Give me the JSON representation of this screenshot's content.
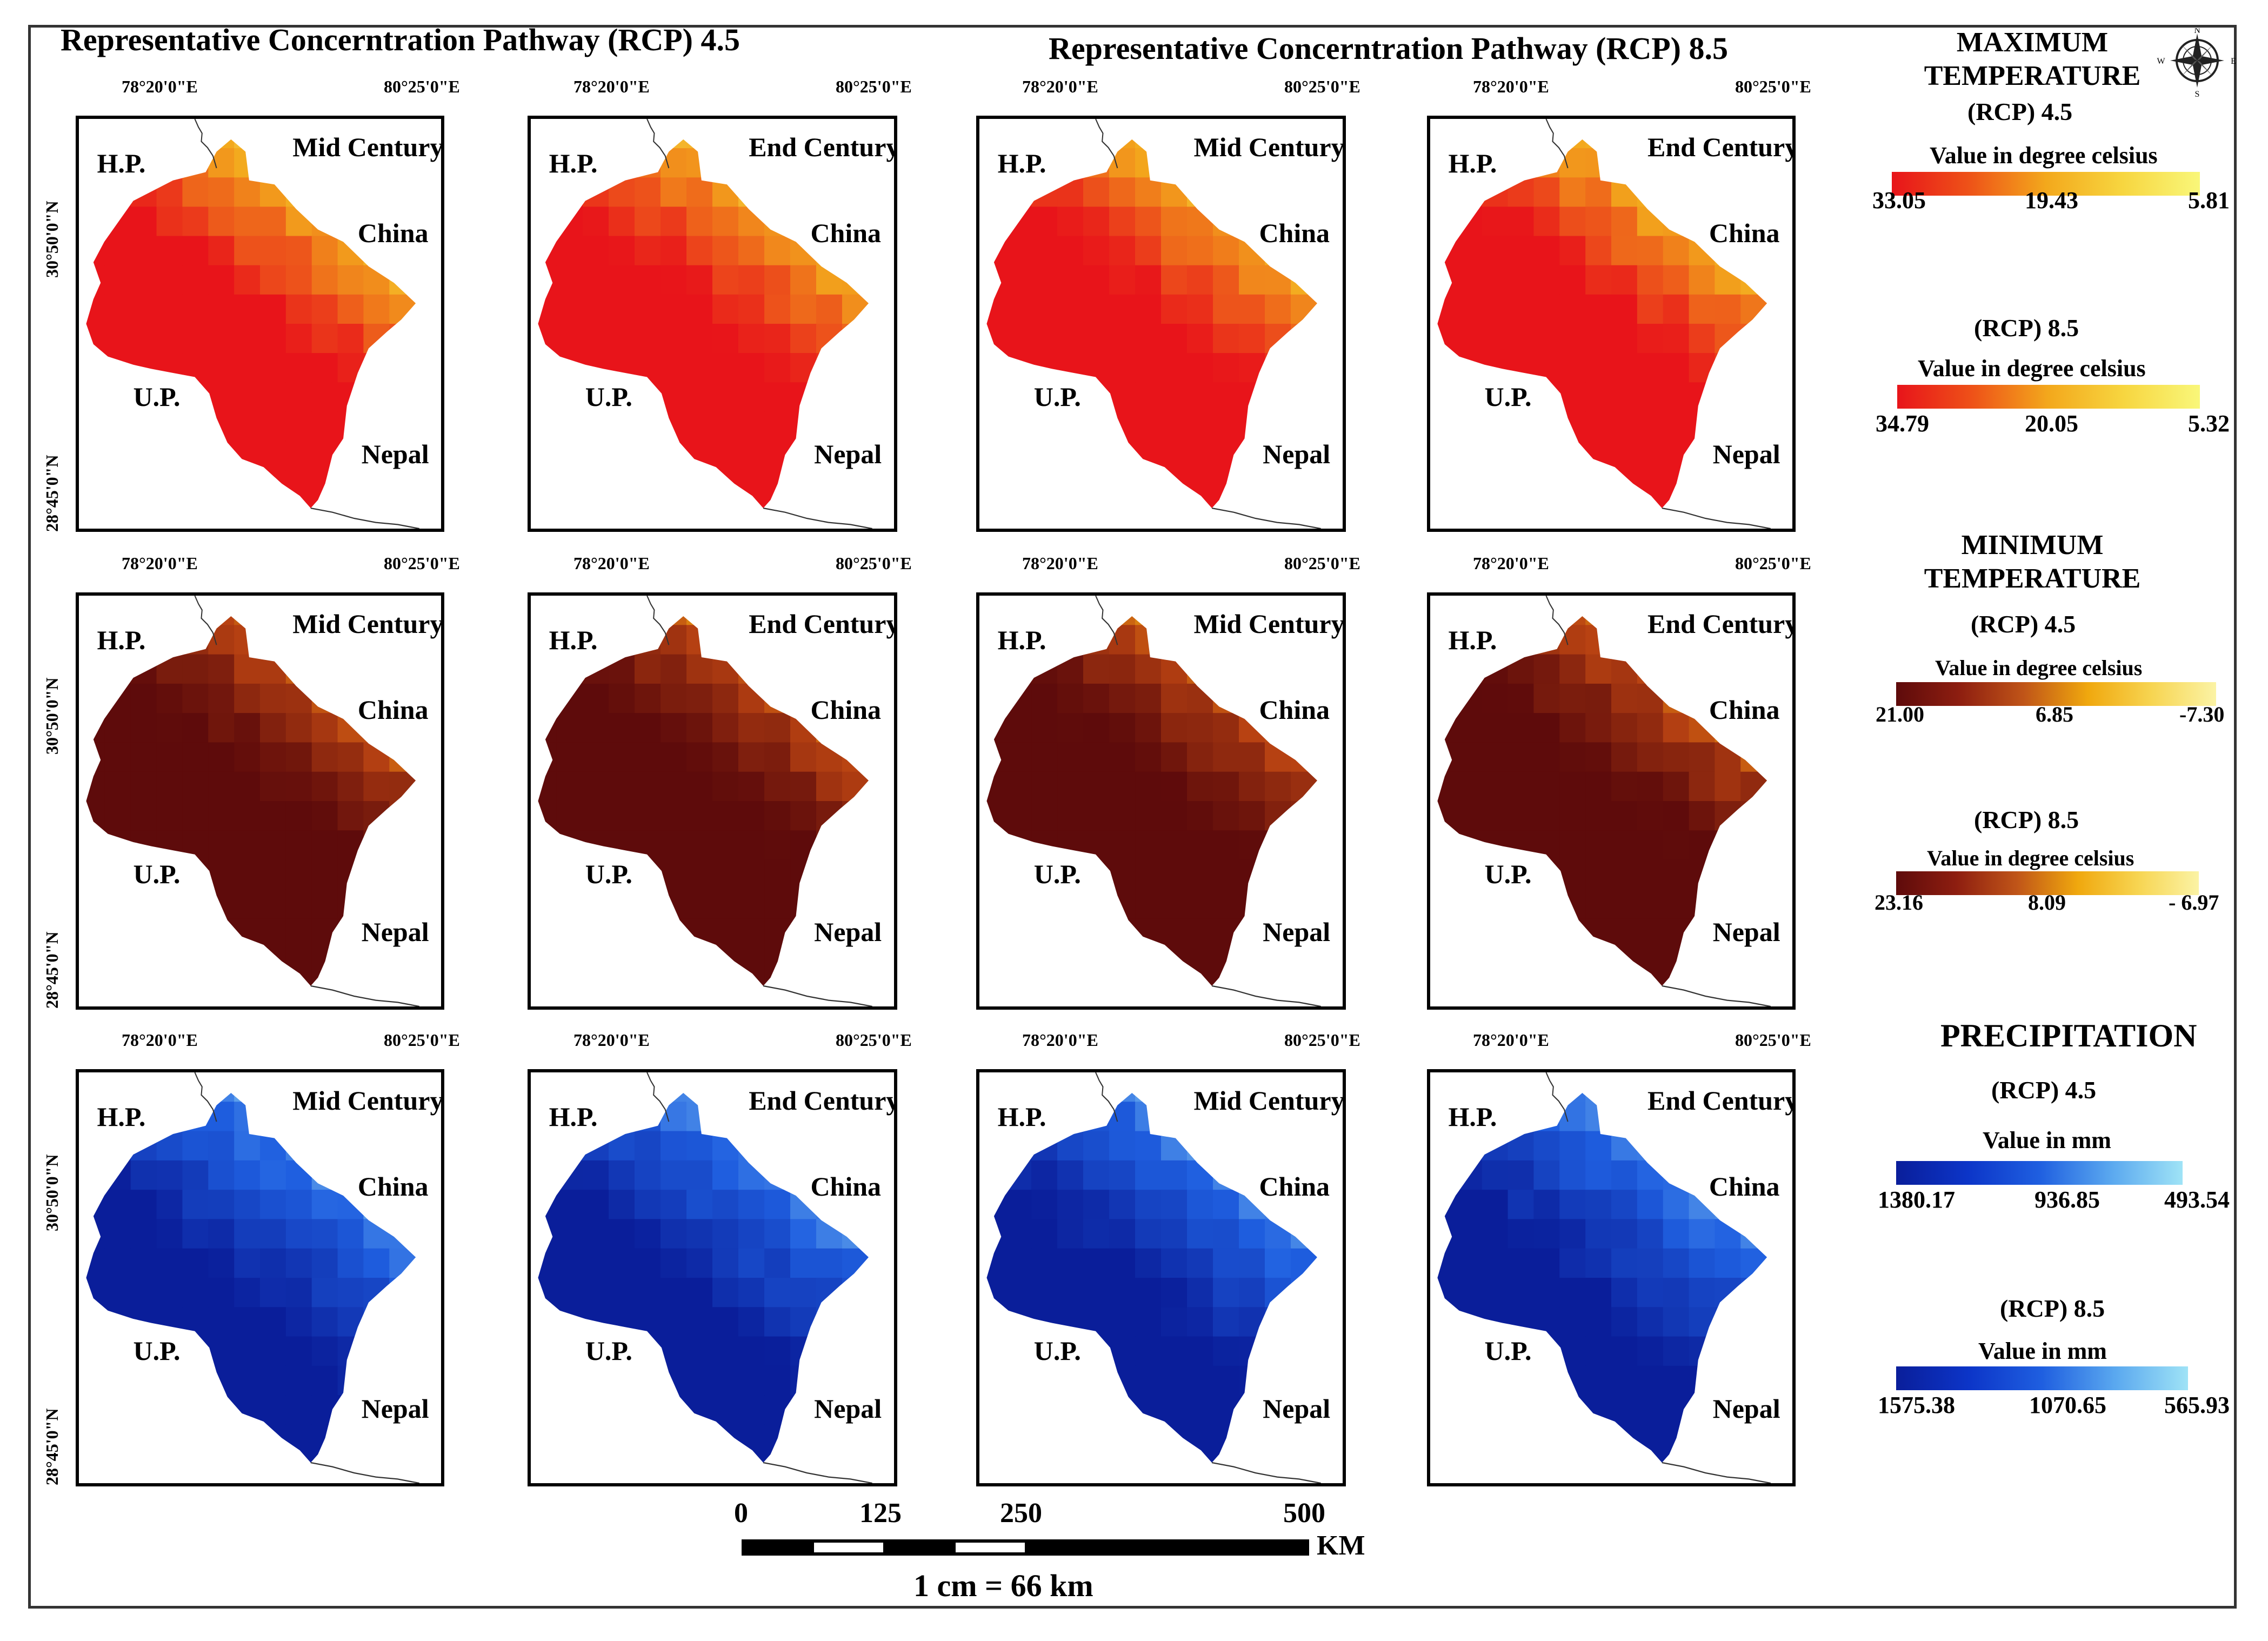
{
  "headers": {
    "rcp45": "Representative Concerntration Pathway (RCP) 4.5",
    "rcp85": "Representative Concerntration Pathway (RCP) 8.5"
  },
  "coords": {
    "lon_west": "78°20'0\"E",
    "lon_east": "80°25'0\"E",
    "lat_north": "30°50'0\"N",
    "lat_south": "28°45'0\"N"
  },
  "map_labels": {
    "hp": "H.P.",
    "up": "U.P.",
    "china": "China",
    "nepal": "Nepal",
    "mid": "Mid Century",
    "end": "End Century"
  },
  "legends": {
    "max_title": "MAXIMUM TEMPERATURE",
    "min_title": "MINIMUM TEMPERATURE",
    "prec_title": "PRECIPITATION",
    "rcp45": "(RCP) 4.5",
    "rcp85": "(RCP) 8.5",
    "unit_celsius": "Value in degree celsius",
    "unit_mm": "Value in mm",
    "max45": {
      "low": "33.05",
      "mid": "19.43",
      "high": "5.81"
    },
    "max85": {
      "low": "34.79",
      "mid": "20.05",
      "high": "5.32"
    },
    "min45": {
      "low": "21.00",
      "mid": "6.85",
      "high": "-7.30"
    },
    "min85": {
      "low": "23.16",
      "mid": "8.09",
      "high": "- 6.97"
    },
    "prec45": {
      "low": "1380.17",
      "mid": "936.85",
      "high": "493.54"
    },
    "prec85": {
      "low": "1575.38",
      "mid": "1070.65",
      "high": "565.93"
    }
  },
  "compass": {
    "n": "N",
    "s": "S",
    "e": "E",
    "w": "W"
  },
  "scale": {
    "t0": "0",
    "t1": "125",
    "t2": "250",
    "t3": "500",
    "unit": "KM",
    "ratio": "1 cm = 66 km"
  },
  "colors": {
    "max_ramp": [
      "#e8141a",
      "#f3a81c",
      "#f9f77a"
    ],
    "min_ramp": [
      "#5e0b0b",
      "#b84212",
      "#f0a80e",
      "#fbf3a5"
    ],
    "prec_ramp": [
      "#0a1e9a",
      "#1f5fe0",
      "#9fe3f6"
    ]
  }
}
